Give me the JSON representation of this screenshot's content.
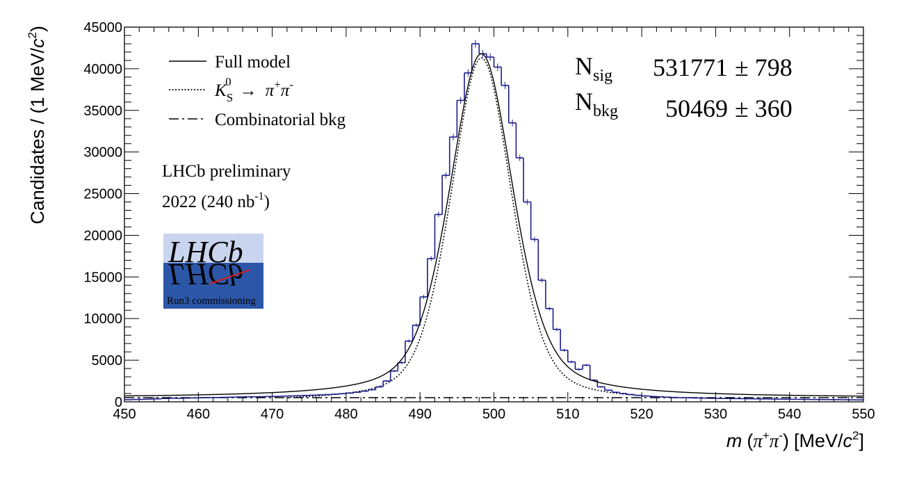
{
  "chart_data": {
    "type": "histogram-fit",
    "xlabel": {
      "m": "m",
      "open": "(",
      "pi": "π",
      "plus": "+",
      "pi2": "π",
      "minus": "-",
      "close": ")",
      "unit": "[MeV/",
      "c": "c",
      "sq": "2",
      "end": "]"
    },
    "ylabel": {
      "text": "Candidates / (1 MeV/",
      "c": "c",
      "sq": "2",
      "end": ")"
    },
    "xlim": [
      450,
      550
    ],
    "ylim": [
      0,
      45000
    ],
    "xticks": [
      450,
      460,
      470,
      480,
      490,
      500,
      510,
      520,
      530,
      540,
      550
    ],
    "yticks": [
      0,
      5000,
      10000,
      15000,
      20000,
      25000,
      30000,
      35000,
      40000,
      45000
    ],
    "bin_width": 1,
    "histogram_x": [
      450,
      451,
      452,
      453,
      454,
      455,
      456,
      457,
      458,
      459,
      460,
      461,
      462,
      463,
      464,
      465,
      466,
      467,
      468,
      469,
      470,
      471,
      472,
      473,
      474,
      475,
      476,
      477,
      478,
      479,
      480,
      481,
      482,
      483,
      484,
      485,
      486,
      487,
      488,
      489,
      490,
      491,
      492,
      493,
      494,
      495,
      496,
      497,
      498,
      499,
      500,
      501,
      502,
      503,
      504,
      505,
      506,
      507,
      508,
      509,
      510,
      511,
      512,
      513,
      514,
      515,
      516,
      517,
      518,
      519,
      520,
      521,
      522,
      523,
      524,
      525,
      526,
      527,
      528,
      529,
      530,
      531,
      532,
      533,
      534,
      535,
      536,
      537,
      538,
      539,
      540,
      541,
      542,
      543,
      544,
      545,
      546,
      547,
      548,
      549
    ],
    "histogram_counts": [
      250,
      280,
      300,
      330,
      360,
      400,
      430,
      420,
      450,
      470,
      500,
      510,
      520,
      540,
      560,
      580,
      600,
      610,
      620,
      640,
      650,
      680,
      710,
      740,
      770,
      800,
      830,
      870,
      920,
      980,
      1050,
      1150,
      1280,
      1450,
      1800,
      2500,
      3700,
      4700,
      7300,
      9200,
      12600,
      17200,
      22500,
      27200,
      31800,
      36200,
      39500,
      43000,
      41800,
      41400,
      40200,
      38000,
      33500,
      29300,
      24000,
      19500,
      14600,
      11200,
      8700,
      6200,
      4800,
      3900,
      4400,
      2600,
      1800,
      1400,
      1150,
      1000,
      880,
      780,
      700,
      640,
      600,
      560,
      530,
      500,
      480,
      460,
      440,
      420,
      410,
      400,
      390,
      380,
      370,
      360,
      350,
      340,
      330,
      320,
      310,
      300,
      290,
      280,
      270,
      270,
      260,
      250,
      240,
      230
    ],
    "model_curves": {
      "mu": 498.3,
      "full_peak": 41800,
      "signal_peak": 41300,
      "signal_width": 4.2,
      "bkg_level": 500
    },
    "legend": {
      "full": "Full model",
      "signal_k": "K",
      "signal_sub": "S",
      "signal_sup": "0",
      "arrow": "→",
      "signal_pi1": "π",
      "signal_plus": "+",
      "signal_pi2": "π",
      "signal_minus": "-",
      "bkg": "Combinatorial bkg",
      "placement": "top-left"
    },
    "annotations": {
      "experiment": "LHCb preliminary",
      "lumi_year": "2022 (240 nb",
      "lumi_sup": "-1",
      "lumi_close": ")"
    },
    "yields": {
      "sig_n": "N",
      "sig_sub": "sig",
      "sig_value": "531771",
      "sig_err": "± 798",
      "bkg_n": "N",
      "bkg_sub": "bkg",
      "bkg_value": "50469",
      "bkg_err": "± 360"
    },
    "logo": {
      "text": "LHCb",
      "caption": "Run3 commissioning"
    },
    "colors": {
      "histogram": "#1a1a8c",
      "logo_top": "#c9d4ef",
      "logo_bottom": "#2c56a8",
      "logo_streak": "#d22020"
    }
  }
}
